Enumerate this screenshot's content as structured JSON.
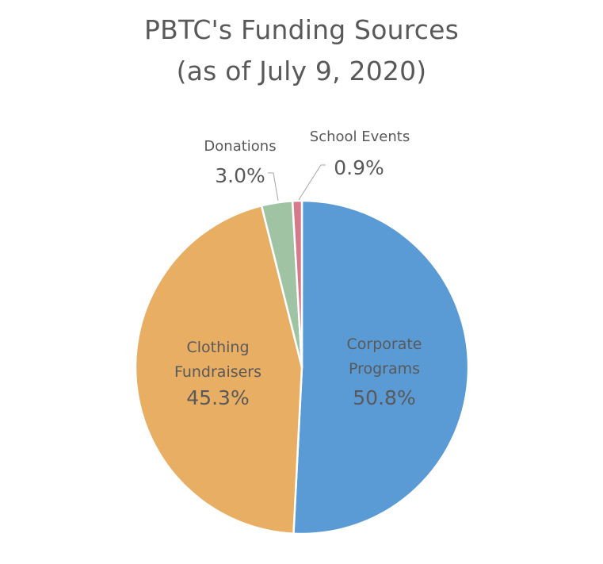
{
  "chart_data": {
    "type": "pie",
    "title_lines": [
      "PBTC's Funding Sources",
      "(as of July 9, 2020)"
    ],
    "slices": [
      {
        "name_lines": [
          "Corporate",
          "Programs"
        ],
        "value": 50.8,
        "label": "50.8%",
        "color": "#5B9BD5",
        "label_position": "inside"
      },
      {
        "name_lines": [
          "Clothing",
          "Fundraisers"
        ],
        "value": 45.3,
        "label": "45.3%",
        "color": "#E8AE63",
        "label_position": "inside"
      },
      {
        "name_lines": [
          "Donations"
        ],
        "value": 3.0,
        "label": "3.0%",
        "color": "#9FC3A3",
        "label_position": "outside"
      },
      {
        "name_lines": [
          "School Events"
        ],
        "value": 0.9,
        "label": "0.9%",
        "color": "#D47A8A",
        "label_position": "outside"
      }
    ],
    "start_angle_deg": 0,
    "direction": "clockwise",
    "legend": "none"
  }
}
